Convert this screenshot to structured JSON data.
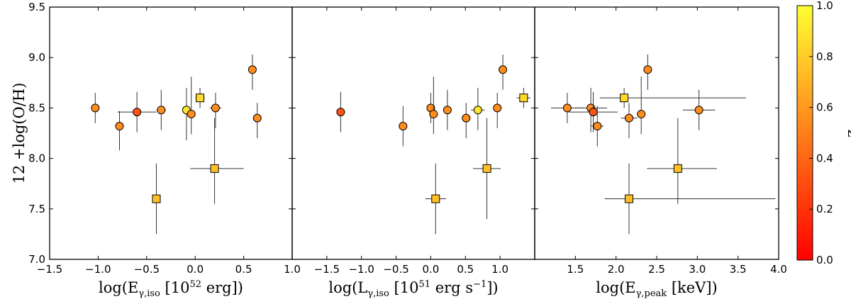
{
  "chart_data": {
    "type": "scatter",
    "colorbar": {
      "label": "z",
      "range": [
        0.0,
        1.0
      ],
      "ticks": [
        "0.0",
        "0.2",
        "0.4",
        "0.6",
        "0.8",
        "1.0"
      ],
      "colormap": [
        "#ff0000",
        "#ffff33"
      ]
    },
    "ylabel": "12 +log(O/H)",
    "ylim": [
      7.0,
      9.5
    ],
    "yticks": [
      "7.0",
      "7.5",
      "8.0",
      "8.5",
      "9.0",
      "9.5"
    ],
    "panels": [
      {
        "name": "E_iso",
        "xlabel": "log(Eγ,iso [10^52 erg])",
        "xlabel_parts": {
          "pre": "log(E",
          "sub": "γ,iso",
          "mid": " [10",
          "sup": "52",
          "post": " erg])"
        },
        "xlim": [
          -1.5,
          1.0
        ],
        "xticks": [
          "−1.5",
          "−1.0",
          "−0.5",
          "0.0",
          "0.5",
          "1.0"
        ],
        "xtick_values": [
          -1.5,
          -1.0,
          -0.5,
          0.0,
          0.5,
          1.0
        ],
        "points": [
          {
            "x": -1.03,
            "y": 8.5,
            "yerr": [
              0.15,
              0.15
            ],
            "z": 0.55,
            "marker": "circle"
          },
          {
            "x": -0.78,
            "y": 8.32,
            "yerr": [
              0.24,
              0.15
            ],
            "z": 0.55,
            "marker": "circle"
          },
          {
            "x": -0.6,
            "y": 8.46,
            "yerr": [
              0.2,
              0.2
            ],
            "xerr": [
              0.2,
              0.2
            ],
            "z": 0.33,
            "marker": "circle"
          },
          {
            "x": -0.35,
            "y": 8.48,
            "yerr": [
              0.2,
              0.2
            ],
            "xerr": [
              0.05,
              0.05
            ],
            "z": 0.55,
            "marker": "circle"
          },
          {
            "x": -0.4,
            "y": 7.6,
            "yerr": [
              0.35,
              0.35
            ],
            "z": 0.75,
            "marker": "square"
          },
          {
            "x": -0.09,
            "y": 8.48,
            "yerr": [
              0.3,
              0.22
            ],
            "z": 0.9,
            "marker": "circle"
          },
          {
            "x": -0.04,
            "y": 8.44,
            "yerr": [
              0.2,
              0.37
            ],
            "z": 0.55,
            "marker": "circle"
          },
          {
            "x": 0.05,
            "y": 8.6,
            "yerr": [
              0.1,
              0.1
            ],
            "xerr": [
              0.05,
              0.05
            ],
            "z": 0.85,
            "marker": "square"
          },
          {
            "x": 0.21,
            "y": 8.5,
            "yerr": [
              0.2,
              0.15
            ],
            "xerr": [
              0.06,
              0.06
            ],
            "z": 0.55,
            "marker": "circle"
          },
          {
            "x": 0.2,
            "y": 7.9,
            "yerr": [
              0.35,
              0.5
            ],
            "xerr": [
              0.25,
              0.3
            ],
            "z": 0.75,
            "marker": "square"
          },
          {
            "x": 0.59,
            "y": 8.88,
            "yerr": [
              0.2,
              0.15
            ],
            "z": 0.55,
            "marker": "circle"
          },
          {
            "x": 0.64,
            "y": 8.4,
            "yerr": [
              0.2,
              0.15
            ],
            "z": 0.55,
            "marker": "circle"
          }
        ]
      },
      {
        "name": "L_iso",
        "xlabel": "log(Lγ,iso [10^51 erg s^−1])",
        "xlabel_parts": {
          "pre": "log(L",
          "sub": "γ,iso",
          "mid": " [10",
          "sup": "51",
          "post": " erg s",
          "sup2": "−1",
          "post2": "])"
        },
        "xlim": [
          -2.0,
          1.5
        ],
        "xticks": [
          "−1.5",
          "−1.0",
          "−0.5",
          "0.0",
          "0.5",
          "1.0"
        ],
        "xtick_values": [
          -1.5,
          -1.0,
          -0.5,
          0.0,
          0.5,
          1.0
        ],
        "points": [
          {
            "x": -1.3,
            "y": 8.46,
            "yerr": [
              0.2,
              0.2
            ],
            "z": 0.33,
            "marker": "circle"
          },
          {
            "x": -0.4,
            "y": 8.32,
            "yerr": [
              0.2,
              0.2
            ],
            "z": 0.55,
            "marker": "circle"
          },
          {
            "x": 0.0,
            "y": 8.5,
            "yerr": [
              0.15,
              0.15
            ],
            "z": 0.55,
            "marker": "circle"
          },
          {
            "x": 0.04,
            "y": 8.44,
            "yerr": [
              0.2,
              0.37
            ],
            "z": 0.55,
            "marker": "circle"
          },
          {
            "x": 0.07,
            "y": 7.6,
            "yerr": [
              0.35,
              0.35
            ],
            "xerr": [
              0.15,
              0.15
            ],
            "z": 0.75,
            "marker": "square"
          },
          {
            "x": 0.24,
            "y": 8.48,
            "yerr": [
              0.2,
              0.2
            ],
            "xerr": [
              0.05,
              0.05
            ],
            "z": 0.55,
            "marker": "circle"
          },
          {
            "x": 0.51,
            "y": 8.4,
            "yerr": [
              0.2,
              0.15
            ],
            "z": 0.55,
            "marker": "circle"
          },
          {
            "x": 0.68,
            "y": 8.48,
            "yerr": [
              0.2,
              0.22
            ],
            "xerr": [
              0.1,
              0.1
            ],
            "z": 0.9,
            "marker": "circle"
          },
          {
            "x": 0.81,
            "y": 7.9,
            "yerr": [
              0.5,
              0.5
            ],
            "xerr": [
              0.2,
              0.2
            ],
            "z": 0.75,
            "marker": "square"
          },
          {
            "x": 0.96,
            "y": 8.5,
            "yerr": [
              0.2,
              0.15
            ],
            "xerr": [
              0.06,
              0.06
            ],
            "z": 0.55,
            "marker": "circle"
          },
          {
            "x": 1.04,
            "y": 8.88,
            "yerr": [
              0.2,
              0.15
            ],
            "z": 0.55,
            "marker": "circle"
          },
          {
            "x": 1.34,
            "y": 8.6,
            "yerr": [
              0.1,
              0.1
            ],
            "xerr": [
              0.1,
              0.1
            ],
            "z": 0.85,
            "marker": "square"
          }
        ]
      },
      {
        "name": "E_peak",
        "xlabel": "log(Eγ,peak [keV])",
        "xlabel_parts": {
          "pre": "log(E",
          "sub": "γ,peak",
          "mid": " [keV])"
        },
        "xlim": [
          1.0,
          4.0
        ],
        "xticks": [
          "1.5",
          "2.0",
          "2.5",
          "3.0",
          "3.5",
          "4.0"
        ],
        "xtick_values": [
          1.5,
          2.0,
          2.5,
          3.0,
          3.5,
          4.0
        ],
        "points": [
          {
            "x": 1.4,
            "y": 8.5,
            "yerr": [
              0.15,
              0.15
            ],
            "xerr": [
              0.2,
              0.2
            ],
            "z": 0.55,
            "marker": "circle"
          },
          {
            "x": 1.69,
            "y": 8.5,
            "yerr": [
              0.24,
              0.2
            ],
            "xerr": [
              0.2,
              0.2
            ],
            "z": 0.55,
            "marker": "circle"
          },
          {
            "x": 1.72,
            "y": 8.46,
            "yerr": [
              0.2,
              0.2
            ],
            "xerr": [
              0.3,
              0.3
            ],
            "z": 0.33,
            "marker": "circle"
          },
          {
            "x": 1.77,
            "y": 8.32,
            "yerr": [
              0.2,
              0.2
            ],
            "xerr": [
              0.08,
              0.08
            ],
            "z": 0.55,
            "marker": "circle"
          },
          {
            "x": 2.1,
            "y": 8.6,
            "yerr": [
              0.1,
              0.1
            ],
            "xerr": [
              0.3,
              1.5
            ],
            "z": 0.85,
            "marker": "square"
          },
          {
            "x": 2.16,
            "y": 7.6,
            "yerr": [
              0.35,
              0.35
            ],
            "xerr": [
              0.3,
              1.8
            ],
            "z": 0.75,
            "marker": "square"
          },
          {
            "x": 2.16,
            "y": 8.4,
            "yerr": [
              0.2,
              0.15
            ],
            "xerr": [
              0.1,
              0.1
            ],
            "z": 0.55,
            "marker": "circle"
          },
          {
            "x": 2.31,
            "y": 8.44,
            "yerr": [
              0.2,
              0.37
            ],
            "z": 0.55,
            "marker": "circle"
          },
          {
            "x": 2.39,
            "y": 8.88,
            "yerr": [
              0.2,
              0.15
            ],
            "z": 0.55,
            "marker": "circle"
          },
          {
            "x": 2.76,
            "y": 7.9,
            "yerr": [
              0.35,
              0.5
            ],
            "xerr": [
              0.38,
              0.48
            ],
            "z": 0.75,
            "marker": "square"
          },
          {
            "x": 3.02,
            "y": 8.48,
            "yerr": [
              0.2,
              0.2
            ],
            "xerr": [
              0.2,
              0.2
            ],
            "z": 0.55,
            "marker": "circle"
          }
        ]
      }
    ]
  }
}
